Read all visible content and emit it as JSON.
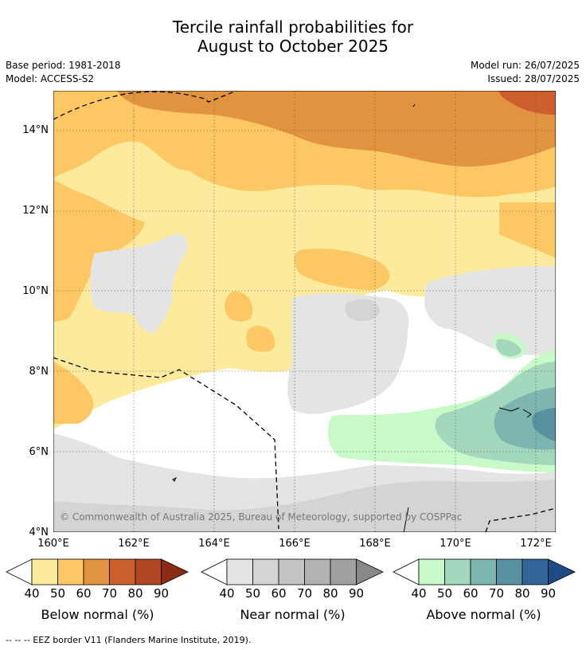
{
  "title_line1": "Tercile rainfall probabilities for",
  "title_line2": "August to October 2025",
  "base_period": "Base period: 1981-2018",
  "model": "Model: ACCESS-S2",
  "model_run": "Model run: 26/07/2025",
  "issued": "Issued: 28/07/2025",
  "copyright": "© Commonwealth of Australia 2025, Bureau of Meteorology, supported by COSPPac",
  "footer": "--  --  -- EEZ border V11 (Flanders Marine Institute, 2019).",
  "axes": {
    "lat_labels": [
      "14°N",
      "12°N",
      "10°N",
      "8°N",
      "6°N",
      "4°N"
    ],
    "lon_labels": [
      "160°E",
      "162°E",
      "164°E",
      "166°E",
      "168°E",
      "170°E",
      "172°E"
    ]
  },
  "legends": [
    {
      "title": "Below normal (%)",
      "colors": [
        "#fdeb9d",
        "#fdc864",
        "#e1933f",
        "#cc5f2d",
        "#b04622",
        "#8c2b14"
      ]
    },
    {
      "title": "Near normal (%)",
      "colors": [
        "#e4e4e4",
        "#d4d4d4",
        "#c4c4c4",
        "#b2b2b2",
        "#a0a0a0",
        "#888888"
      ]
    },
    {
      "title": "Above normal (%)",
      "colors": [
        "#c8f9c8",
        "#a3d8bd",
        "#7cb6ae",
        "#5891a0",
        "#336598",
        "#1d4b85"
      ]
    }
  ],
  "legend_ticks": [
    "40",
    "50",
    "60",
    "70",
    "80",
    "90"
  ]
}
